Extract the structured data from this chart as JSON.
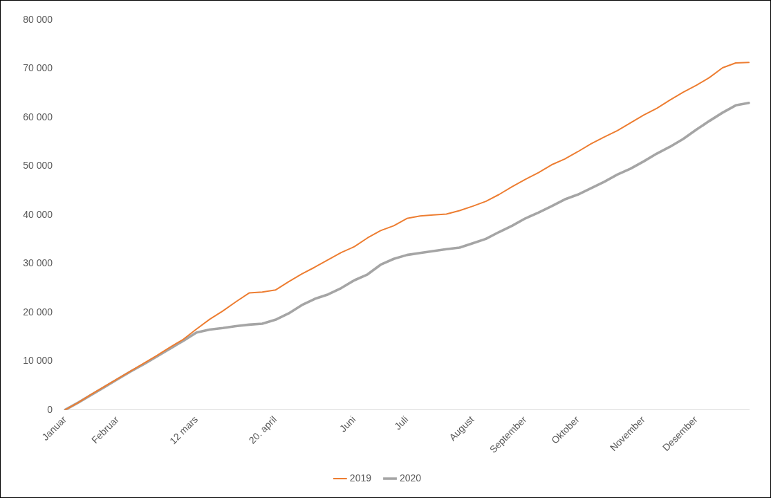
{
  "chart_data": {
    "type": "line",
    "categories": [
      "Januar",
      null,
      null,
      null,
      "Februar",
      null,
      null,
      null,
      null,
      null,
      "12 mars",
      null,
      null,
      null,
      null,
      null,
      "20. april",
      null,
      null,
      null,
      null,
      null,
      "Juni",
      null,
      null,
      null,
      "Juli",
      null,
      null,
      null,
      null,
      "August",
      null,
      null,
      null,
      "September",
      null,
      null,
      null,
      "Oktober",
      null,
      null,
      null,
      null,
      "November",
      null,
      null,
      null,
      "Desember",
      null,
      null,
      null,
      null
    ],
    "series": [
      {
        "name": "2019",
        "color": "#ed7d31",
        "values": [
          0,
          1500,
          3200,
          4800,
          6400,
          8000,
          9600,
          11200,
          12900,
          14500,
          16600,
          18600,
          20300,
          22200,
          24000,
          24200,
          24600,
          26300,
          27900,
          29300,
          30800,
          32300,
          33500,
          35300,
          36800,
          37800,
          39300,
          39800,
          40000,
          40200,
          40900,
          41800,
          42800,
          44200,
          45800,
          47300,
          48700,
          50300,
          51500,
          53000,
          54600,
          56000,
          57300,
          58900,
          60500,
          61900,
          63600,
          65200,
          66600,
          68200,
          70200,
          71200,
          71300
        ]
      },
      {
        "name": "2020",
        "color": "#a5a5a5",
        "values": [
          0,
          1500,
          3100,
          4700,
          6300,
          7900,
          9400,
          11000,
          12600,
          14200,
          15900,
          16500,
          16800,
          17200,
          17500,
          17700,
          18500,
          19800,
          21500,
          22800,
          23700,
          25000,
          26600,
          27800,
          29800,
          31000,
          31800,
          32200,
          32600,
          33000,
          33300,
          34200,
          35100,
          36500,
          37800,
          39300,
          40500,
          41800,
          43200,
          44200,
          45500,
          46800,
          48300,
          49500,
          51000,
          52600,
          54000,
          55600,
          57500,
          59300,
          61000,
          62500,
          63000
        ]
      }
    ],
    "ylim": [
      0,
      80000
    ],
    "yticks": [
      {
        "value": 0,
        "label": "0"
      },
      {
        "value": 10000,
        "label": "10 000"
      },
      {
        "value": 20000,
        "label": "20 000"
      },
      {
        "value": 30000,
        "label": "30 000"
      },
      {
        "value": 40000,
        "label": "40 000"
      },
      {
        "value": 50000,
        "label": "50 000"
      },
      {
        "value": 60000,
        "label": "60 000"
      },
      {
        "value": 70000,
        "label": "70 000"
      },
      {
        "value": 80000,
        "label": "80 000"
      }
    ],
    "legend": "bottom",
    "marker": "none",
    "line_style": "solid"
  }
}
